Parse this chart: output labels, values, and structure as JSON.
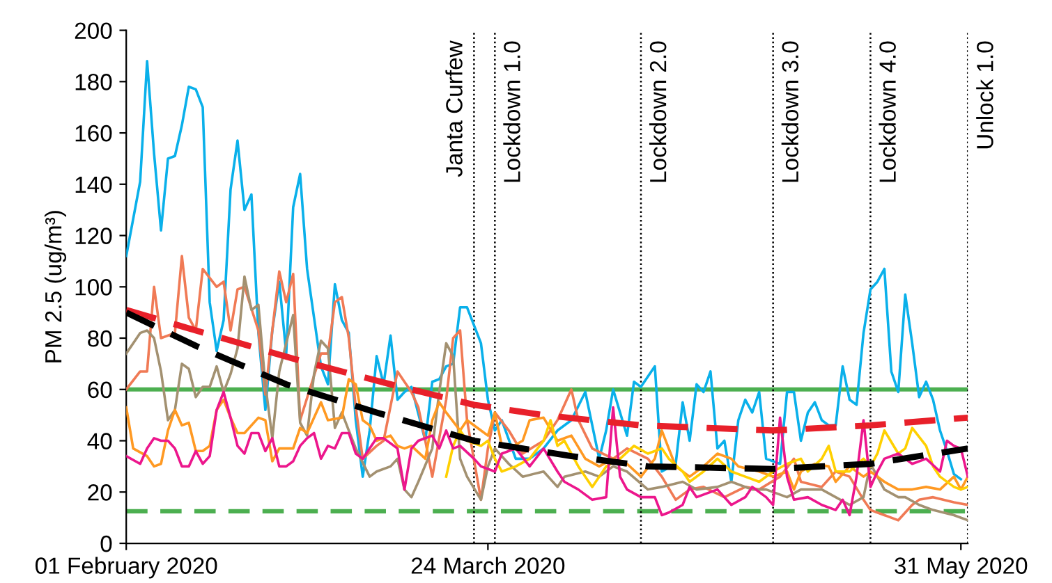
{
  "chart_data": {
    "type": "line",
    "ylabel": "PM 2.5 (ug/m³)",
    "xlim": [
      "2020-02-01",
      "2020-06-01"
    ],
    "xticks": [
      {
        "value": "2020-02-01",
        "label": "01 February 2020"
      },
      {
        "value": "2020-03-24",
        "label": "24 March 2020"
      },
      {
        "value": "2020-05-31",
        "label": "31 May 2020"
      }
    ],
    "ylim": [
      0,
      200
    ],
    "yticks": [
      0,
      20,
      40,
      60,
      80,
      100,
      120,
      140,
      160,
      180,
      200
    ],
    "grid": false,
    "line_style": "solid",
    "marker": "none",
    "ref_lines": [
      {
        "axis": "y",
        "value": 60,
        "color": "#4caf50",
        "line_style": "solid"
      },
      {
        "axis": "y",
        "value": 12.5,
        "color": "#4caf50",
        "line_style": "dashed"
      },
      {
        "axis": "x",
        "value": "2020-03-22",
        "label": "Janta Curfew",
        "color": "#000000",
        "line_style": "dotted"
      },
      {
        "axis": "x",
        "value": "2020-03-25",
        "label": "Lockdown 1.0",
        "color": "#000000",
        "line_style": "dotted"
      },
      {
        "axis": "x",
        "value": "2020-04-15",
        "label": "Lockdown 2.0",
        "color": "#000000",
        "line_style": "dotted"
      },
      {
        "axis": "x",
        "value": "2020-05-04",
        "label": "Lockdown 3.0",
        "color": "#000000",
        "line_style": "dotted"
      },
      {
        "axis": "x",
        "value": "2020-05-18",
        "label": "Lockdown 4.0",
        "color": "#000000",
        "line_style": "dotted"
      },
      {
        "axis": "x",
        "value": "2020-06-01",
        "label": "Unlock 1.0",
        "color": "#000000",
        "line_style": "dotted"
      }
    ],
    "series": [
      {
        "color": "#0ab0ea",
        "x": [
          "2020-02-01",
          "2020-02-03",
          "2020-02-04",
          "2020-02-05",
          "2020-02-06",
          "2020-02-07",
          "2020-02-08",
          "2020-02-09",
          "2020-02-10",
          "2020-02-11",
          "2020-02-12",
          "2020-02-13",
          "2020-02-14",
          "2020-02-15",
          "2020-02-16",
          "2020-02-17",
          "2020-02-18",
          "2020-02-19",
          "2020-02-20",
          "2020-02-21",
          "2020-02-22",
          "2020-02-23",
          "2020-02-24",
          "2020-02-25",
          "2020-02-26",
          "2020-02-27",
          "2020-02-29",
          "2020-03-01",
          "2020-03-02",
          "2020-03-03",
          "2020-03-04",
          "2020-03-05",
          "2020-03-06",
          "2020-03-07",
          "2020-03-08",
          "2020-03-09",
          "2020-03-10",
          "2020-03-11",
          "2020-03-12",
          "2020-03-13",
          "2020-03-15",
          "2020-03-16",
          "2020-03-17",
          "2020-03-18",
          "2020-03-19",
          "2020-03-20",
          "2020-03-21",
          "2020-03-23",
          "2020-03-24",
          "2020-03-25",
          "2020-03-26",
          "2020-03-28",
          "2020-03-30",
          "2020-04-01",
          "2020-04-03",
          "2020-04-05",
          "2020-04-07",
          "2020-04-09",
          "2020-04-10",
          "2020-04-11",
          "2020-04-12",
          "2020-04-13",
          "2020-04-14",
          "2020-04-15",
          "2020-04-17",
          "2020-04-18",
          "2020-04-20",
          "2020-04-21",
          "2020-04-22",
          "2020-04-23",
          "2020-04-24",
          "2020-04-25",
          "2020-04-26",
          "2020-04-27",
          "2020-04-28",
          "2020-04-29",
          "2020-04-30",
          "2020-05-01",
          "2020-05-02",
          "2020-05-03",
          "2020-05-05",
          "2020-05-06",
          "2020-05-07",
          "2020-05-08",
          "2020-05-09",
          "2020-05-10",
          "2020-05-11",
          "2020-05-12",
          "2020-05-13",
          "2020-05-14",
          "2020-05-15",
          "2020-05-16",
          "2020-05-17",
          "2020-05-18",
          "2020-05-19",
          "2020-05-20",
          "2020-05-21",
          "2020-05-22",
          "2020-05-23",
          "2020-05-24",
          "2020-05-25",
          "2020-05-26",
          "2020-05-27",
          "2020-05-28",
          "2020-05-29",
          "2020-05-30",
          "2020-05-31"
        ],
        "values": [
          112,
          141,
          188,
          152,
          122,
          150,
          151,
          163,
          178,
          177,
          170,
          94,
          75,
          87,
          138,
          157,
          130,
          136,
          82,
          52,
          83,
          102,
          74,
          131,
          144,
          107,
          69,
          62,
          101,
          87,
          82,
          48,
          26,
          44,
          73,
          62,
          81,
          56,
          59,
          61,
          40,
          63,
          64,
          69,
          70,
          92,
          92,
          78,
          56,
          44,
          48,
          33,
          33,
          37,
          44,
          48,
          59,
          33,
          44,
          60,
          51,
          42,
          63,
          61,
          69,
          28,
          31,
          55,
          40,
          62,
          59,
          67,
          37,
          40,
          24,
          48,
          56,
          51,
          59,
          33,
          31,
          59,
          59,
          40,
          51,
          55,
          48,
          46,
          46,
          69,
          56,
          54,
          82,
          99,
          102,
          107,
          67,
          59,
          97,
          78,
          57,
          63,
          56,
          44,
          36,
          27,
          25
        ]
      },
      {
        "color": "#f07a55",
        "x": [
          "2020-02-01",
          "2020-02-03",
          "2020-02-04",
          "2020-02-05",
          "2020-02-06",
          "2020-02-08",
          "2020-02-09",
          "2020-02-10",
          "2020-02-11",
          "2020-02-12",
          "2020-02-14",
          "2020-02-15",
          "2020-02-16",
          "2020-02-17",
          "2020-02-18",
          "2020-02-20",
          "2020-02-21",
          "2020-02-22",
          "2020-02-23",
          "2020-02-24",
          "2020-02-25",
          "2020-02-26",
          "2020-02-29",
          "2020-03-01",
          "2020-03-02",
          "2020-03-03",
          "2020-03-04",
          "2020-03-05",
          "2020-03-06",
          "2020-03-08",
          "2020-03-09",
          "2020-03-11",
          "2020-03-13",
          "2020-03-14",
          "2020-03-15",
          "2020-03-16",
          "2020-03-18",
          "2020-03-19",
          "2020-03-20",
          "2020-03-21",
          "2020-03-23",
          "2020-03-24",
          "2020-03-25",
          "2020-03-27",
          "2020-03-29",
          "2020-04-01",
          "2020-04-03",
          "2020-04-05",
          "2020-04-06",
          "2020-04-08",
          "2020-04-11",
          "2020-04-13",
          "2020-04-16",
          "2020-04-18",
          "2020-04-20",
          "2020-04-22",
          "2020-04-24",
          "2020-04-27",
          "2020-04-30",
          "2020-05-02",
          "2020-05-05",
          "2020-05-07",
          "2020-05-08",
          "2020-05-11",
          "2020-05-13",
          "2020-05-15",
          "2020-05-17",
          "2020-05-18",
          "2020-05-20",
          "2020-05-22",
          "2020-05-24",
          "2020-05-25",
          "2020-05-27",
          "2020-05-30",
          "2020-06-01"
        ],
        "values": [
          60,
          67,
          67,
          100,
          80,
          82,
          112,
          88,
          83,
          107,
          100,
          102,
          83,
          99,
          100,
          83,
          58,
          83,
          106,
          94,
          105,
          48,
          74,
          74,
          94,
          96,
          80,
          53,
          33,
          38,
          40,
          67,
          59,
          53,
          40,
          26,
          56,
          80,
          83,
          48,
          17,
          37,
          51,
          44,
          35,
          40,
          48,
          60,
          48,
          37,
          33,
          37,
          33,
          26,
          17,
          21,
          22,
          18,
          22,
          21,
          26,
          33,
          24,
          22,
          28,
          26,
          17,
          13,
          11,
          9,
          15,
          17,
          18,
          16,
          15
        ]
      },
      {
        "color": "#a39171",
        "x": [
          "2020-02-01",
          "2020-02-03",
          "2020-02-04",
          "2020-02-05",
          "2020-02-06",
          "2020-02-07",
          "2020-02-08",
          "2020-02-09",
          "2020-02-10",
          "2020-02-11",
          "2020-02-12",
          "2020-02-13",
          "2020-02-14",
          "2020-02-15",
          "2020-02-16",
          "2020-02-17",
          "2020-02-18",
          "2020-02-19",
          "2020-02-20",
          "2020-02-21",
          "2020-02-22",
          "2020-02-23",
          "2020-02-24",
          "2020-02-25",
          "2020-02-26",
          "2020-02-27",
          "2020-02-28",
          "2020-02-29",
          "2020-03-01",
          "2020-03-02",
          "2020-03-03",
          "2020-03-04",
          "2020-03-05",
          "2020-03-07",
          "2020-03-08",
          "2020-03-10",
          "2020-03-11",
          "2020-03-12",
          "2020-03-13",
          "2020-03-14",
          "2020-03-16",
          "2020-03-17",
          "2020-03-18",
          "2020-03-19",
          "2020-03-20",
          "2020-03-21",
          "2020-03-23",
          "2020-03-24",
          "2020-03-25",
          "2020-03-27",
          "2020-03-29",
          "2020-04-01",
          "2020-04-03",
          "2020-04-04",
          "2020-04-07",
          "2020-04-09",
          "2020-04-11",
          "2020-04-13",
          "2020-04-16",
          "2020-04-18",
          "2020-04-21",
          "2020-04-23",
          "2020-04-26",
          "2020-04-28",
          "2020-05-01",
          "2020-05-03",
          "2020-05-06",
          "2020-05-08",
          "2020-05-11",
          "2020-05-13",
          "2020-05-15",
          "2020-05-17",
          "2020-05-18",
          "2020-05-20",
          "2020-05-22",
          "2020-05-23",
          "2020-05-25",
          "2020-05-27",
          "2020-05-30",
          "2020-06-01"
        ],
        "values": [
          74,
          82,
          83,
          80,
          67,
          48,
          52,
          70,
          68,
          57,
          61,
          61,
          69,
          59,
          66,
          76,
          104,
          91,
          93,
          62,
          41,
          67,
          78,
          89,
          47,
          42,
          66,
          79,
          76,
          45,
          51,
          44,
          37,
          26,
          28,
          30,
          33,
          21,
          18,
          24,
          37,
          59,
          78,
          73,
          33,
          26,
          17,
          30,
          37,
          31,
          26,
          28,
          22,
          26,
          28,
          26,
          30,
          28,
          21,
          22,
          24,
          21,
          22,
          24,
          21,
          21,
          18,
          21,
          21,
          18,
          15,
          18,
          31,
          21,
          18,
          18,
          15,
          13,
          11,
          9
        ]
      },
      {
        "color": "#ff9922",
        "x": [
          "2020-02-01",
          "2020-02-02",
          "2020-02-04",
          "2020-02-05",
          "2020-02-06",
          "2020-02-07",
          "2020-02-08",
          "2020-02-09",
          "2020-02-10",
          "2020-02-11",
          "2020-02-12",
          "2020-02-13",
          "2020-02-14",
          "2020-02-15",
          "2020-02-16",
          "2020-02-17",
          "2020-02-18",
          "2020-02-20",
          "2020-02-21",
          "2020-02-22",
          "2020-02-23",
          "2020-02-25",
          "2020-02-26",
          "2020-02-27",
          "2020-02-29",
          "2020-03-01",
          "2020-03-03",
          "2020-03-04",
          "2020-03-05",
          "2020-03-06",
          "2020-03-07",
          "2020-03-08",
          "2020-03-10",
          "2020-03-11",
          "2020-03-12",
          "2020-03-13",
          "2020-03-15",
          "2020-03-16",
          "2020-03-17",
          "2020-03-18",
          "2020-03-20",
          "2020-03-21",
          "2020-03-23",
          "2020-03-24",
          "2020-03-25",
          "2020-03-26",
          "2020-03-27",
          "2020-03-29",
          "2020-03-30",
          "2020-04-01",
          "2020-04-03",
          "2020-04-05",
          "2020-04-07",
          "2020-04-09",
          "2020-04-11",
          "2020-04-13",
          "2020-04-15",
          "2020-04-17",
          "2020-04-18",
          "2020-04-20",
          "2020-04-22",
          "2020-04-24",
          "2020-04-26",
          "2020-04-28",
          "2020-04-29",
          "2020-05-02",
          "2020-05-04",
          "2020-05-06",
          "2020-05-07",
          "2020-05-08",
          "2020-05-10",
          "2020-05-12",
          "2020-05-13",
          "2020-05-15",
          "2020-05-17",
          "2020-05-18",
          "2020-05-20",
          "2020-05-22",
          "2020-05-24",
          "2020-05-26",
          "2020-05-28",
          "2020-05-30",
          "2020-05-31",
          "2020-06-01"
        ],
        "values": [
          53,
          37,
          34,
          30,
          31,
          44,
          52,
          46,
          47,
          36,
          36,
          38,
          52,
          56,
          49,
          43,
          43,
          49,
          48,
          32,
          37,
          37,
          45,
          43,
          55,
          48,
          49,
          64,
          62,
          48,
          46,
          40,
          42,
          38,
          37,
          38,
          33,
          48,
          55,
          51,
          44,
          48,
          44,
          42,
          51,
          38,
          37,
          40,
          48,
          49,
          40,
          42,
          33,
          30,
          33,
          31,
          26,
          33,
          44,
          30,
          26,
          30,
          35,
          33,
          30,
          28,
          26,
          28,
          21,
          28,
          31,
          30,
          24,
          30,
          26,
          28,
          24,
          21,
          21,
          22,
          21,
          26,
          21,
          26
        ]
      },
      {
        "color": "#ffd000",
        "x": [
          "2020-03-18",
          "2020-03-19",
          "2020-03-20",
          "2020-03-21",
          "2020-03-23",
          "2020-03-24",
          "2020-03-25",
          "2020-03-26",
          "2020-03-28",
          "2020-03-30",
          "2020-04-01",
          "2020-04-02",
          "2020-04-03",
          "2020-04-04",
          "2020-04-06",
          "2020-04-08",
          "2020-04-10",
          "2020-04-12",
          "2020-04-14",
          "2020-04-16",
          "2020-04-18",
          "2020-04-19",
          "2020-04-21",
          "2020-04-22",
          "2020-04-24",
          "2020-04-26",
          "2020-04-28",
          "2020-04-30",
          "2020-05-02",
          "2020-05-04",
          "2020-05-06",
          "2020-05-08",
          "2020-05-09",
          "2020-05-11",
          "2020-05-12",
          "2020-05-13",
          "2020-05-15",
          "2020-05-17",
          "2020-05-18",
          "2020-05-19",
          "2020-05-20",
          "2020-05-22",
          "2020-05-23",
          "2020-05-24",
          "2020-05-26",
          "2020-05-27",
          "2020-05-28",
          "2020-05-30",
          "2020-05-31",
          "2020-06-01"
        ],
        "values": [
          26,
          38,
          44,
          40,
          38,
          40,
          33,
          28,
          30,
          33,
          40,
          48,
          38,
          40,
          30,
          22,
          30,
          33,
          38,
          35,
          37,
          33,
          28,
          24,
          28,
          33,
          28,
          26,
          24,
          28,
          31,
          33,
          28,
          33,
          38,
          28,
          28,
          33,
          30,
          35,
          44,
          35,
          37,
          45,
          38,
          30,
          26,
          22,
          21,
          22
        ]
      },
      {
        "color": "#ec168c",
        "x": [
          "2020-02-01",
          "2020-02-03",
          "2020-02-04",
          "2020-02-05",
          "2020-02-06",
          "2020-02-07",
          "2020-02-08",
          "2020-02-09",
          "2020-02-10",
          "2020-02-11",
          "2020-02-12",
          "2020-02-13",
          "2020-02-14",
          "2020-02-15",
          "2020-02-16",
          "2020-02-17",
          "2020-02-18",
          "2020-02-19",
          "2020-02-20",
          "2020-02-21",
          "2020-02-22",
          "2020-02-23",
          "2020-02-24",
          "2020-02-25",
          "2020-02-26",
          "2020-02-27",
          "2020-02-28",
          "2020-02-29",
          "2020-03-01",
          "2020-03-02",
          "2020-03-03",
          "2020-03-04",
          "2020-03-05",
          "2020-03-06",
          "2020-03-07",
          "2020-03-08",
          "2020-03-09",
          "2020-03-11",
          "2020-03-12",
          "2020-03-13",
          "2020-03-14",
          "2020-03-16",
          "2020-03-17",
          "2020-03-18",
          "2020-03-19",
          "2020-03-20",
          "2020-03-22",
          "2020-03-23",
          "2020-03-25",
          "2020-03-26",
          "2020-03-28",
          "2020-03-30",
          "2020-04-01",
          "2020-04-03",
          "2020-04-04",
          "2020-04-06",
          "2020-04-08",
          "2020-04-10",
          "2020-04-11",
          "2020-04-12",
          "2020-04-13",
          "2020-04-15",
          "2020-04-17",
          "2020-04-18",
          "2020-04-19",
          "2020-04-21",
          "2020-04-22",
          "2020-04-23",
          "2020-04-26",
          "2020-04-28",
          "2020-04-30",
          "2020-05-01",
          "2020-05-03",
          "2020-05-04",
          "2020-05-05",
          "2020-05-06",
          "2020-05-07",
          "2020-05-09",
          "2020-05-11",
          "2020-05-13",
          "2020-05-14",
          "2020-05-15",
          "2020-05-16",
          "2020-05-17",
          "2020-05-18",
          "2020-05-19",
          "2020-05-20",
          "2020-05-22",
          "2020-05-23",
          "2020-05-24",
          "2020-05-26",
          "2020-05-28",
          "2020-05-29",
          "2020-05-30",
          "2020-05-31",
          "2020-06-01"
        ],
        "values": [
          34,
          31,
          37,
          41,
          40,
          40,
          37,
          30,
          30,
          36,
          31,
          34,
          52,
          59,
          49,
          38,
          35,
          43,
          43,
          36,
          41,
          30,
          30,
          32,
          38,
          41,
          43,
          33,
          38,
          37,
          43,
          43,
          35,
          33,
          37,
          41,
          41,
          37,
          21,
          37,
          40,
          42,
          37,
          44,
          37,
          38,
          33,
          30,
          28,
          35,
          37,
          30,
          37,
          28,
          24,
          21,
          17,
          18,
          53,
          26,
          21,
          18,
          18,
          11,
          12,
          15,
          22,
          18,
          21,
          15,
          18,
          22,
          18,
          15,
          49,
          26,
          17,
          18,
          15,
          13,
          17,
          11,
          26,
          48,
          22,
          28,
          33,
          35,
          33,
          31,
          33,
          28,
          40,
          38,
          37,
          26
        ]
      },
      {
        "color": "#e8202a",
        "line_style": "dashed",
        "x": [
          "2020-02-01",
          "2020-02-11",
          "2020-02-25",
          "2020-03-10",
          "2020-03-22",
          "2020-04-01",
          "2020-04-15",
          "2020-05-04",
          "2020-05-18",
          "2020-06-01"
        ],
        "values": [
          91,
          83,
          72,
          62,
          54,
          50,
          46,
          44,
          46,
          49
        ]
      },
      {
        "color": "#000000",
        "line_style": "dashed",
        "x": [
          "2020-02-01",
          "2020-02-11",
          "2020-02-24",
          "2020-03-08",
          "2020-03-22",
          "2020-04-05",
          "2020-04-16",
          "2020-05-04",
          "2020-05-18",
          "2020-06-01"
        ],
        "values": [
          90,
          77,
          62,
          51,
          40,
          34,
          30,
          29,
          31,
          37
        ]
      }
    ]
  }
}
